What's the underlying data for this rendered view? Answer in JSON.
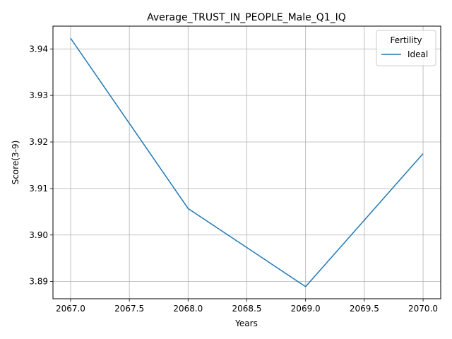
{
  "chart_data": {
    "type": "line",
    "title": "Average_TRUST_IN_PEOPLE_Male_Q1_IQ",
    "xlabel": "Years",
    "ylabel": "Score(3-9)",
    "x": [
      2067,
      2068,
      2069,
      2070
    ],
    "series": [
      {
        "name": "Ideal",
        "values": [
          3.9423,
          3.9057,
          3.8889,
          3.9175
        ],
        "color": "#1f77b4"
      }
    ],
    "xlim": [
      2066.85,
      2070.15
    ],
    "ylim": [
      3.8863,
      3.9449
    ],
    "xticks": [
      "2067.0",
      "2067.5",
      "2068.0",
      "2068.5",
      "2069.0",
      "2069.5",
      "2070.0"
    ],
    "yticks": [
      "3.89",
      "3.90",
      "3.91",
      "3.92",
      "3.93",
      "3.94"
    ],
    "grid": true,
    "legend": {
      "title": "Fertility",
      "placement": "top-right"
    }
  }
}
